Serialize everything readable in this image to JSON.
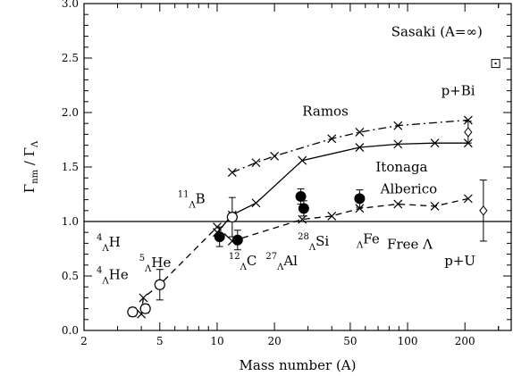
{
  "chart_data": {
    "type": "scatter",
    "xlabel": "Mass number (A)",
    "ylabel": {
      "main": "Γ",
      "sub": "nm",
      "sep": " / ",
      "main2": "Γ",
      "sub2": "Λ"
    },
    "x_scale": "log",
    "xlim": [
      2,
      350
    ],
    "ylim": [
      0,
      3.0
    ],
    "x_ticks": [
      2,
      5,
      10,
      20,
      50,
      100,
      200
    ],
    "y_ticks": [
      "0.0",
      "0.5",
      "1.0",
      "1.5",
      "2.0",
      "2.5",
      "3.0"
    ],
    "grid": false,
    "reference_line": {
      "y": 1.0
    },
    "series": [
      {
        "values": [
          {
            "x": 10,
            "y": 0.9
          },
          {
            "x": 12,
            "y": 1.06
          },
          {
            "x": 16,
            "y": 1.17
          },
          {
            "x": 28,
            "y": 1.56
          },
          {
            "x": 56,
            "y": 1.68
          },
          {
            "x": 89,
            "y": 1.71
          },
          {
            "x": 139,
            "y": 1.72
          },
          {
            "x": 208,
            "y": 1.72
          }
        ],
        "line": "solid",
        "marker": "x"
      },
      {
        "values": [
          {
            "x": 12,
            "y": 1.45
          },
          {
            "x": 16,
            "y": 1.54
          },
          {
            "x": 20,
            "y": 1.6
          },
          {
            "x": 40,
            "y": 1.76
          },
          {
            "x": 56,
            "y": 1.82
          },
          {
            "x": 89,
            "y": 1.88
          },
          {
            "x": 208,
            "y": 1.93
          }
        ],
        "line": "dash-dot",
        "marker": "x"
      },
      {
        "values": [
          {
            "x": 4,
            "y": 0.15
          },
          {
            "x": 4.1,
            "y": 0.3
          },
          {
            "x": 5,
            "y": 0.42
          },
          {
            "x": 10,
            "y": 0.95
          },
          {
            "x": 12,
            "y": 0.82
          },
          {
            "x": 28,
            "y": 1.02
          },
          {
            "x": 40,
            "y": 1.05
          },
          {
            "x": 56,
            "y": 1.12
          },
          {
            "x": 89,
            "y": 1.16
          },
          {
            "x": 139,
            "y": 1.14
          },
          {
            "x": 208,
            "y": 1.21
          }
        ],
        "line": "dashed",
        "marker": "x"
      },
      {
        "values": [
          {
            "x": 3.6,
            "y": 0.17
          },
          {
            "x": 4.2,
            "y": 0.2
          },
          {
            "x": 5,
            "y": 0.42
          },
          {
            "x": 12,
            "y": 1.04
          }
        ],
        "marker": "open-circle",
        "errors": [
          0.04,
          0.04,
          0.14,
          0.18
        ]
      },
      {
        "values": [
          {
            "x": 10.3,
            "y": 0.86
          },
          {
            "x": 12.8,
            "y": 0.83
          },
          {
            "x": 27.5,
            "y": 1.23
          },
          {
            "x": 28.5,
            "y": 1.12
          },
          {
            "x": 56,
            "y": 1.21
          }
        ],
        "marker": "filled-circle",
        "errors": [
          0.09,
          0.09,
          0.07,
          0.07,
          0.08
        ]
      },
      {
        "values": [
          {
            "x": 208,
            "y": 1.82
          },
          {
            "x": 250,
            "y": 1.1
          }
        ],
        "marker": "open-diamond",
        "errors": [
          0.1,
          0.28
        ]
      },
      {
        "values": [
          {
            "x": 290,
            "y": 2.45
          }
        ],
        "marker": "open-square",
        "errors": [
          0
        ]
      }
    ],
    "annotations": [
      {
        "text": "Sasaki (A=∞)",
        "x": 82,
        "y": 2.7
      },
      {
        "text": "p+Bi",
        "x": 150,
        "y": 2.16
      },
      {
        "text": "Ramos",
        "x": 28,
        "y": 1.97
      },
      {
        "text": "Itonaga",
        "x": 68,
        "y": 1.46
      },
      {
        "text": "Alberico",
        "x": 72,
        "y": 1.26
      },
      {
        "text": "Free Λ",
        "x": 78,
        "y": 0.75
      },
      {
        "text": "p+U",
        "x": 156,
        "y": 0.6
      }
    ],
    "hypernuclei": [
      {
        "pre": "11",
        "sub": "Λ",
        "sym": "B",
        "x": 6.2,
        "y": 1.17
      },
      {
        "pre": "4",
        "sub": "Λ",
        "sym": "H",
        "x": 2.33,
        "y": 0.77
      },
      {
        "pre": "4",
        "sub": "Λ",
        "sym": "He",
        "x": 2.33,
        "y": 0.47
      },
      {
        "pre": "5",
        "sub": "Λ",
        "sym": "He",
        "x": 3.9,
        "y": 0.58
      },
      {
        "pre": "12",
        "sub": "Λ",
        "sym": "C",
        "x": 11.5,
        "y": 0.6
      },
      {
        "pre": "27",
        "sub": "Λ",
        "sym": "Al",
        "x": 18,
        "y": 0.6
      },
      {
        "pre": "28",
        "sub": "Λ",
        "sym": "Si",
        "x": 26.5,
        "y": 0.78
      },
      {
        "pre": "",
        "sub": "Λ",
        "sym": "Fe",
        "x": 54,
        "y": 0.8
      }
    ]
  }
}
